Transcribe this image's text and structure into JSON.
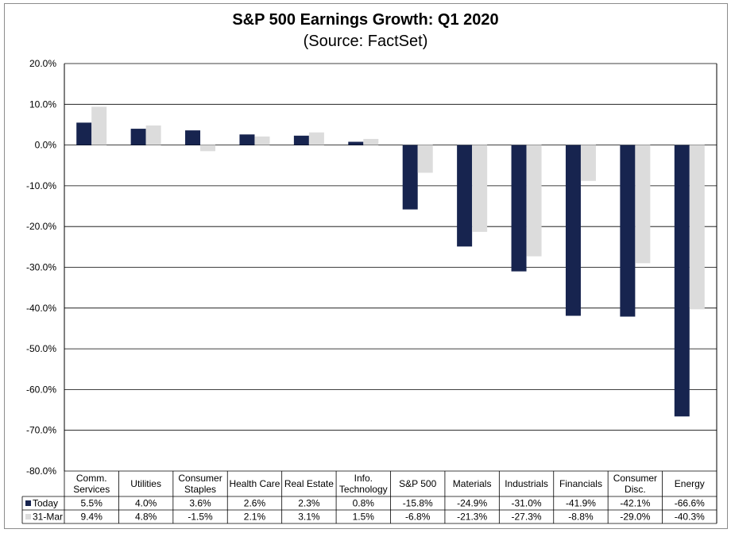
{
  "chart_data": {
    "type": "bar",
    "title": "S&P 500 Earnings Growth:  Q1 2020",
    "subtitle": "(Source: FactSet)",
    "categories": [
      [
        "Comm.",
        "Services"
      ],
      [
        "Utilities"
      ],
      [
        "Consumer",
        "Staples"
      ],
      [
        "Health Care"
      ],
      [
        "Real Estate"
      ],
      [
        "Info.",
        "Technology"
      ],
      [
        "S&P 500"
      ],
      [
        "Materials"
      ],
      [
        "Industrials"
      ],
      [
        "Financials"
      ],
      [
        "Consumer",
        "Disc."
      ],
      [
        "Energy"
      ]
    ],
    "series": [
      {
        "name": "Today",
        "color": "#17244f",
        "values": [
          5.5,
          4.0,
          3.6,
          2.6,
          2.3,
          0.8,
          -15.8,
          -24.9,
          -31.0,
          -41.9,
          -42.1,
          -66.6
        ],
        "labels": [
          "5.5%",
          "4.0%",
          "3.6%",
          "2.6%",
          "2.3%",
          "0.8%",
          "-15.8%",
          "-24.9%",
          "-31.0%",
          "-41.9%",
          "-42.1%",
          "-66.6%"
        ]
      },
      {
        "name": "31-Mar",
        "color": "#dcdcdc",
        "values": [
          9.4,
          4.8,
          -1.5,
          2.1,
          3.1,
          1.5,
          -6.8,
          -21.3,
          -27.3,
          -8.8,
          -29.0,
          -40.3
        ],
        "labels": [
          "9.4%",
          "4.8%",
          "-1.5%",
          "2.1%",
          "3.1%",
          "1.5%",
          "-6.8%",
          "-21.3%",
          "-27.3%",
          "-8.8%",
          "-29.0%",
          "-40.3%"
        ]
      }
    ],
    "yticks": [
      "20.0%",
      "10.0%",
      "0.0%",
      "-10.0%",
      "-20.0%",
      "-30.0%",
      "-40.0%",
      "-50.0%",
      "-60.0%",
      "-70.0%",
      "-80.0%"
    ],
    "ylim": [
      -80,
      20
    ],
    "grid": true,
    "legend": "data-table-below"
  }
}
